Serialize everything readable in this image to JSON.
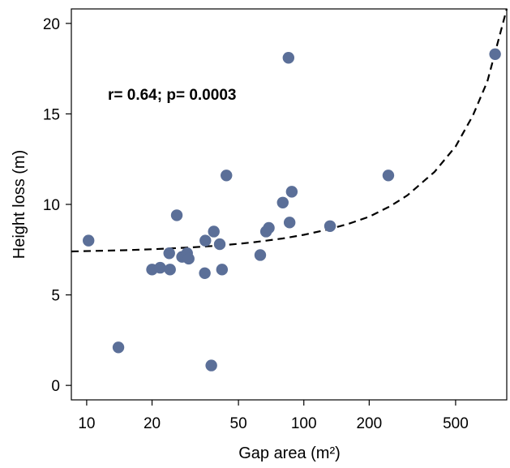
{
  "chart_data": {
    "type": "scatter",
    "xlabel": "Gap area (m²)",
    "ylabel": "Height loss (m)",
    "x_scale": "log",
    "xlim": [
      8.5,
      860
    ],
    "ylim": [
      -0.8,
      20.8
    ],
    "x_ticks": [
      10,
      20,
      50,
      100,
      200,
      500
    ],
    "x_tick_labels": [
      "10",
      "20",
      "50",
      "100",
      "200",
      "500"
    ],
    "y_ticks": [
      0,
      5,
      10,
      15,
      20
    ],
    "y_tick_labels": [
      "0",
      "5",
      "10",
      "15",
      "20"
    ],
    "annotation": "r= 0.64; p= 0.0003",
    "grid": false,
    "point_color": "#5b6f98",
    "fit_color": "#000000",
    "points": [
      {
        "x": 10.2,
        "y": 8.0
      },
      {
        "x": 14.0,
        "y": 2.1
      },
      {
        "x": 20.0,
        "y": 6.4
      },
      {
        "x": 21.8,
        "y": 6.5
      },
      {
        "x": 24.0,
        "y": 7.3
      },
      {
        "x": 24.2,
        "y": 6.4
      },
      {
        "x": 26.0,
        "y": 9.4
      },
      {
        "x": 27.5,
        "y": 7.1
      },
      {
        "x": 29.0,
        "y": 7.3
      },
      {
        "x": 29.5,
        "y": 7.0
      },
      {
        "x": 35.0,
        "y": 6.2
      },
      {
        "x": 35.2,
        "y": 8.0
      },
      {
        "x": 37.5,
        "y": 1.1
      },
      {
        "x": 38.5,
        "y": 8.5
      },
      {
        "x": 41.0,
        "y": 7.8
      },
      {
        "x": 42.0,
        "y": 6.4
      },
      {
        "x": 44.0,
        "y": 11.6
      },
      {
        "x": 63.0,
        "y": 7.2
      },
      {
        "x": 67.0,
        "y": 8.5
      },
      {
        "x": 69.0,
        "y": 8.7
      },
      {
        "x": 80.0,
        "y": 10.1
      },
      {
        "x": 85.0,
        "y": 18.1
      },
      {
        "x": 86.0,
        "y": 9.0
      },
      {
        "x": 88.0,
        "y": 10.7
      },
      {
        "x": 132.0,
        "y": 8.8
      },
      {
        "x": 245.0,
        "y": 11.6
      },
      {
        "x": 760.0,
        "y": 18.3
      }
    ],
    "fit": {
      "style": "dashed",
      "x": [
        8.5,
        15,
        20,
        30,
        40,
        50,
        60,
        80,
        100,
        130,
        160,
        200,
        250,
        300,
        400,
        500,
        600,
        700,
        860
      ],
      "y": [
        7.4,
        7.47,
        7.52,
        7.62,
        7.72,
        7.82,
        7.92,
        8.12,
        8.32,
        8.62,
        8.92,
        9.32,
        9.9,
        10.5,
        11.8,
        13.2,
        14.9,
        16.8,
        20.8
      ]
    }
  }
}
